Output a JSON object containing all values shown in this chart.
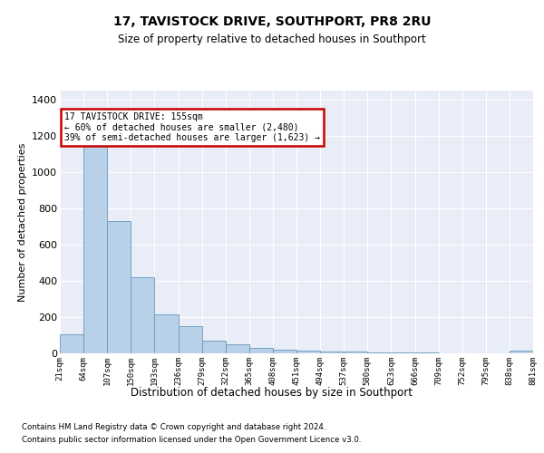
{
  "title": "17, TAVISTOCK DRIVE, SOUTHPORT, PR8 2RU",
  "subtitle": "Size of property relative to detached houses in Southport",
  "xlabel": "Distribution of detached houses by size in Southport",
  "ylabel": "Number of detached properties",
  "categories": [
    "21sqm",
    "64sqm",
    "107sqm",
    "150sqm",
    "193sqm",
    "236sqm",
    "279sqm",
    "322sqm",
    "365sqm",
    "408sqm",
    "451sqm",
    "494sqm",
    "537sqm",
    "580sqm",
    "623sqm",
    "666sqm",
    "709sqm",
    "752sqm",
    "795sqm",
    "838sqm",
    "881sqm"
  ],
  "bar_heights": [
    105,
    1160,
    730,
    420,
    215,
    150,
    72,
    48,
    32,
    20,
    15,
    12,
    8,
    5,
    4,
    3,
    0,
    0,
    0,
    15
  ],
  "bar_color": "#b8d0e8",
  "bar_edge_color": "#6699bb",
  "annotation_line1": "17 TAVISTOCK DRIVE: 155sqm",
  "annotation_line2": "← 60% of detached houses are smaller (2,480)",
  "annotation_line3": "39% of semi-detached houses are larger (1,623) →",
  "annotation_box_facecolor": "#ffffff",
  "annotation_box_edgecolor": "#cc0000",
  "ylim": [
    0,
    1450
  ],
  "yticks": [
    0,
    200,
    400,
    600,
    800,
    1000,
    1200,
    1400
  ],
  "plot_bg_color": "#e8edf8",
  "fig_bg_color": "#ffffff",
  "grid_color": "#ffffff",
  "footer_line1": "Contains HM Land Registry data © Crown copyright and database right 2024.",
  "footer_line2": "Contains public sector information licensed under the Open Government Licence v3.0."
}
